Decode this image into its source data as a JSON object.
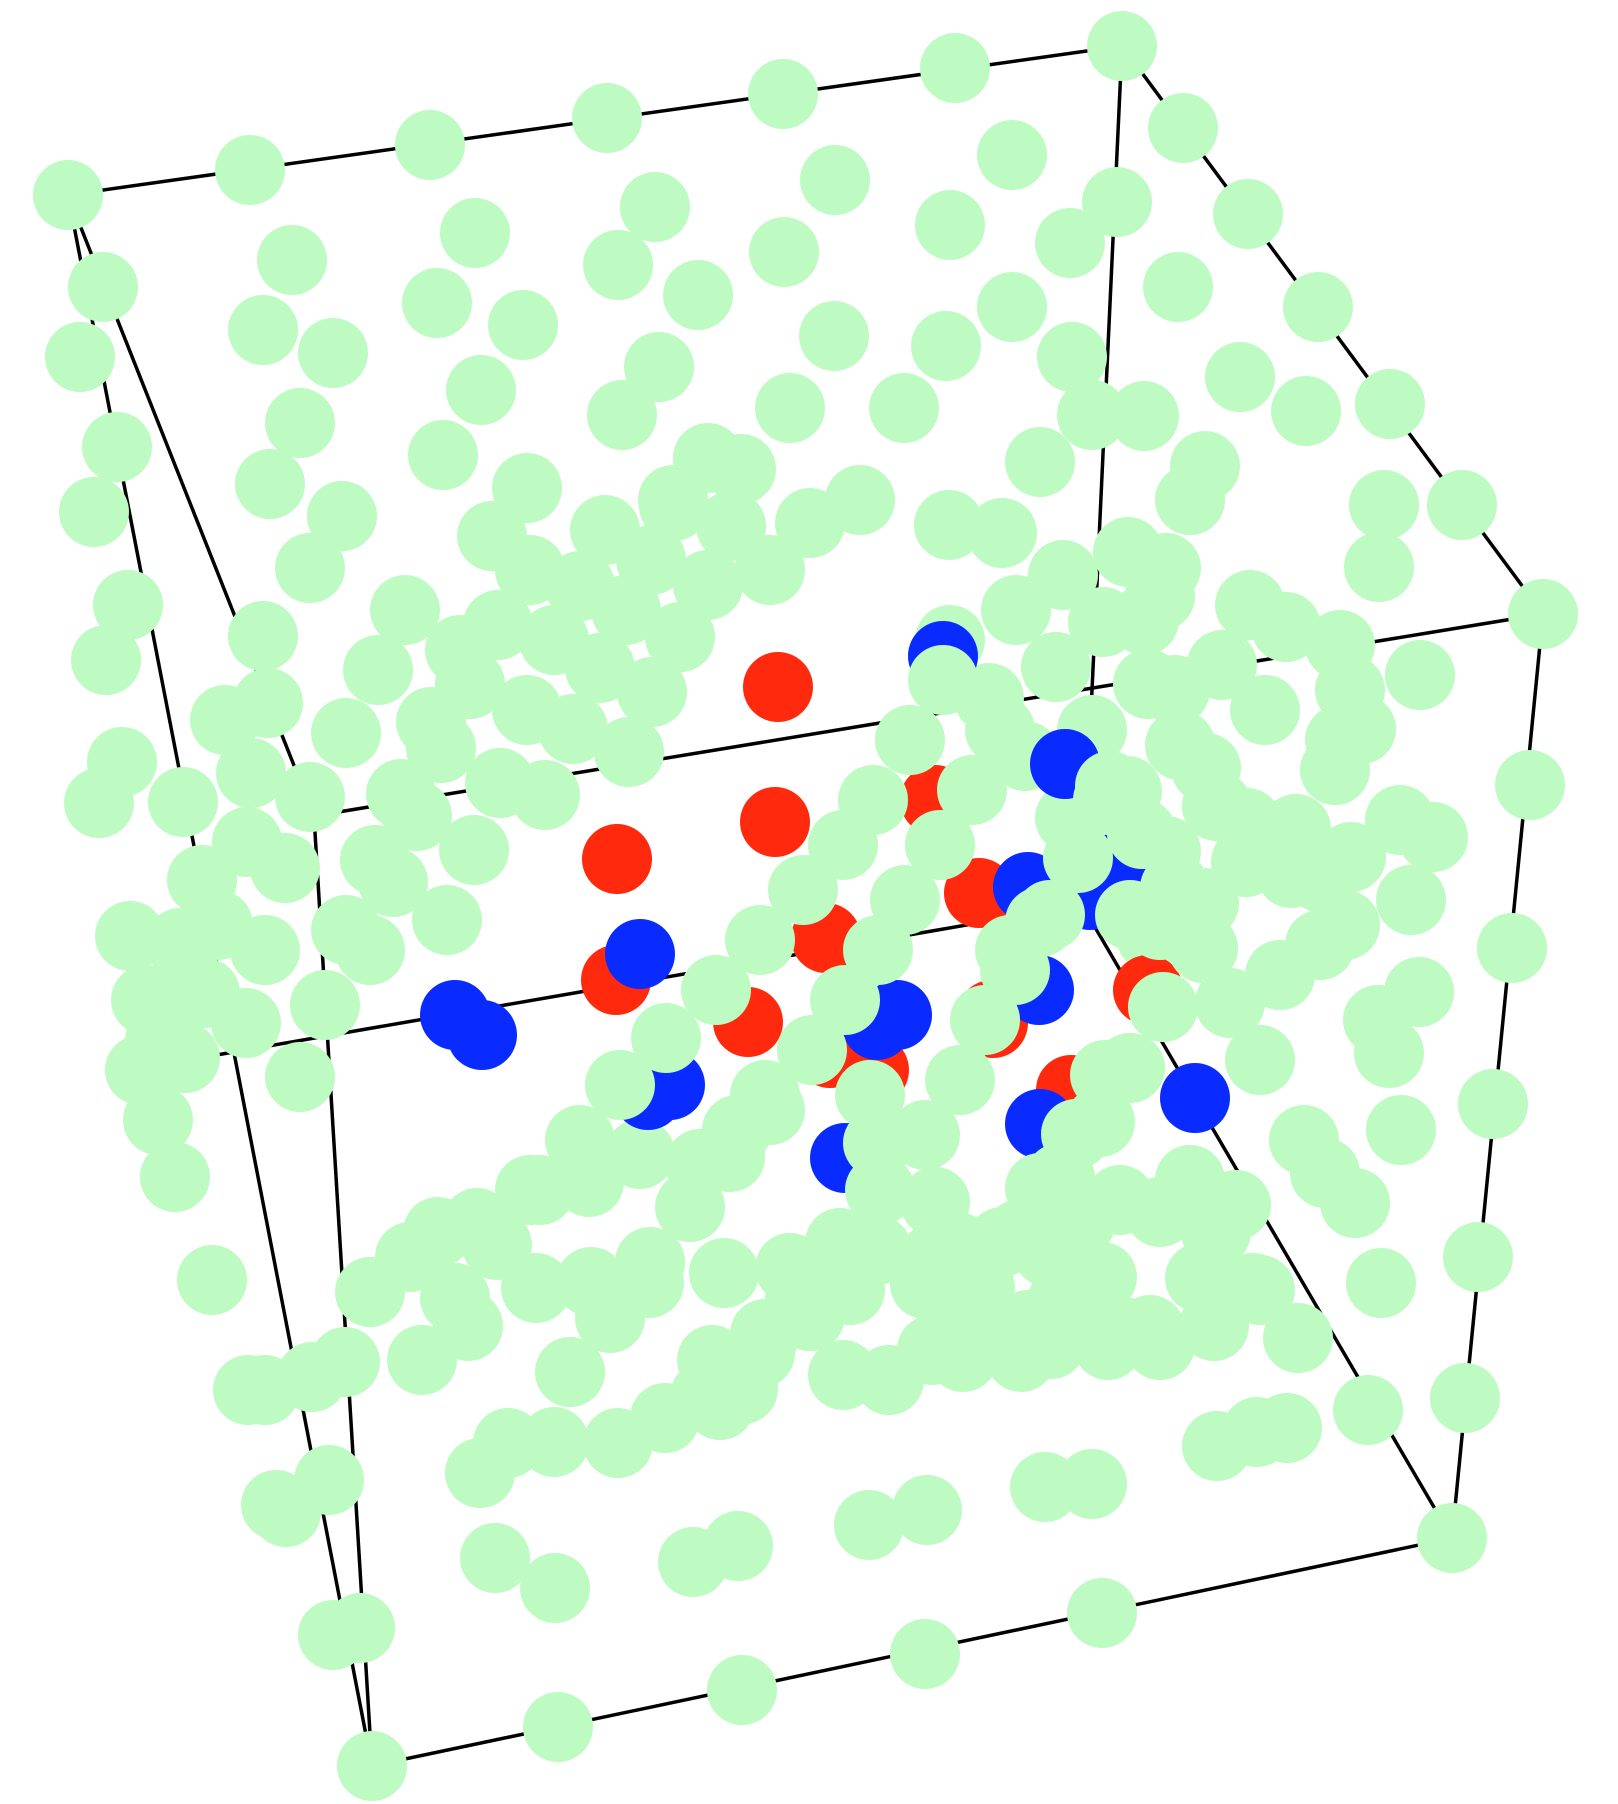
{
  "colors": {
    "background": "#ffffff",
    "edge": "#000000",
    "matrix_atom": "#bdfbc2",
    "red_atom": "#ff2a0d",
    "blue_atom": "#0a2bff"
  }
}
